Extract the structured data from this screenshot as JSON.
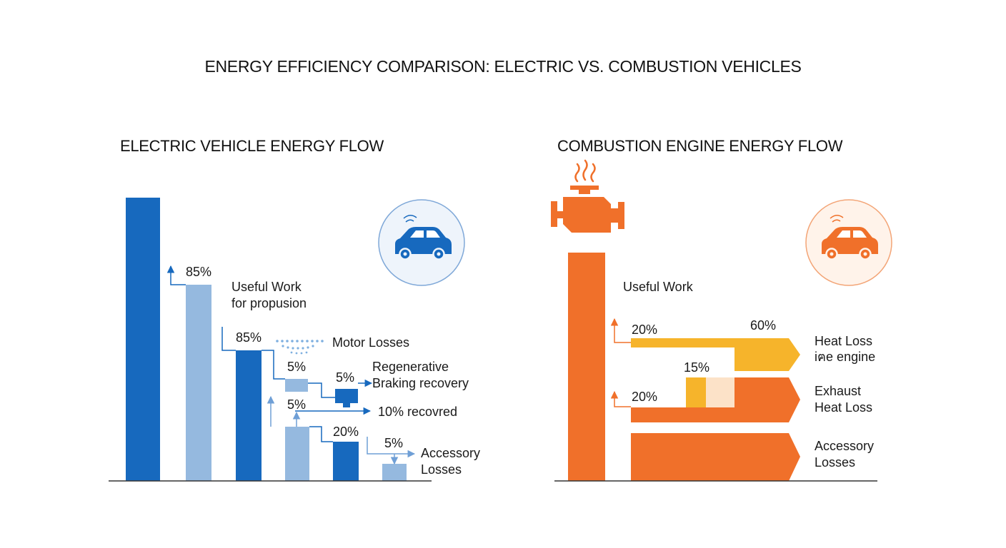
{
  "title": "ENERGY EFFICIENCY COMPARISON: ELECTRIC VS. COMBUSTION VEHICLES",
  "colors": {
    "ev_dark": "#1769be",
    "ev_light": "#95b9df",
    "ice_orange": "#f0702a",
    "ice_amber": "#f6b42b",
    "ice_pale": "#fce2c8"
  },
  "electric": {
    "title": "ELECTRIC VEHICLE ENERGY FLOW",
    "icon": "car-icon",
    "labels": {
      "useful_pct": "85%",
      "useful_1": "Useful Work",
      "useful_2": "for propusion",
      "motor_pct": "85%",
      "motor": "Motor Losses",
      "small_5a": "5%",
      "small_5b": "5%",
      "regen_1": "Regenerative",
      "regen_2": "Braking recovery",
      "small_5c": "5%",
      "recovered": "10% recovred",
      "pct_20": "20%",
      "acc_pct": "5%",
      "acc_1": "Accessory",
      "acc_2": "Losses"
    }
  },
  "combustion": {
    "title": "COMBUSTION ENGINE ENERGY FLOW",
    "icons": [
      "engine-icon",
      "heat-icon",
      "car-icon"
    ],
    "labels": {
      "useful": "Useful Work",
      "pct_20a": "20%",
      "pct_60": "60%",
      "heat_1": "Heat Loss",
      "heat_2": "iฅe engine",
      "pct_15": "15%",
      "pct_20b": "20%",
      "exh_1": "Exhaust",
      "exh_2": "Heat Loss",
      "acc_1": "Accessory",
      "acc_2": "Losses"
    }
  }
}
